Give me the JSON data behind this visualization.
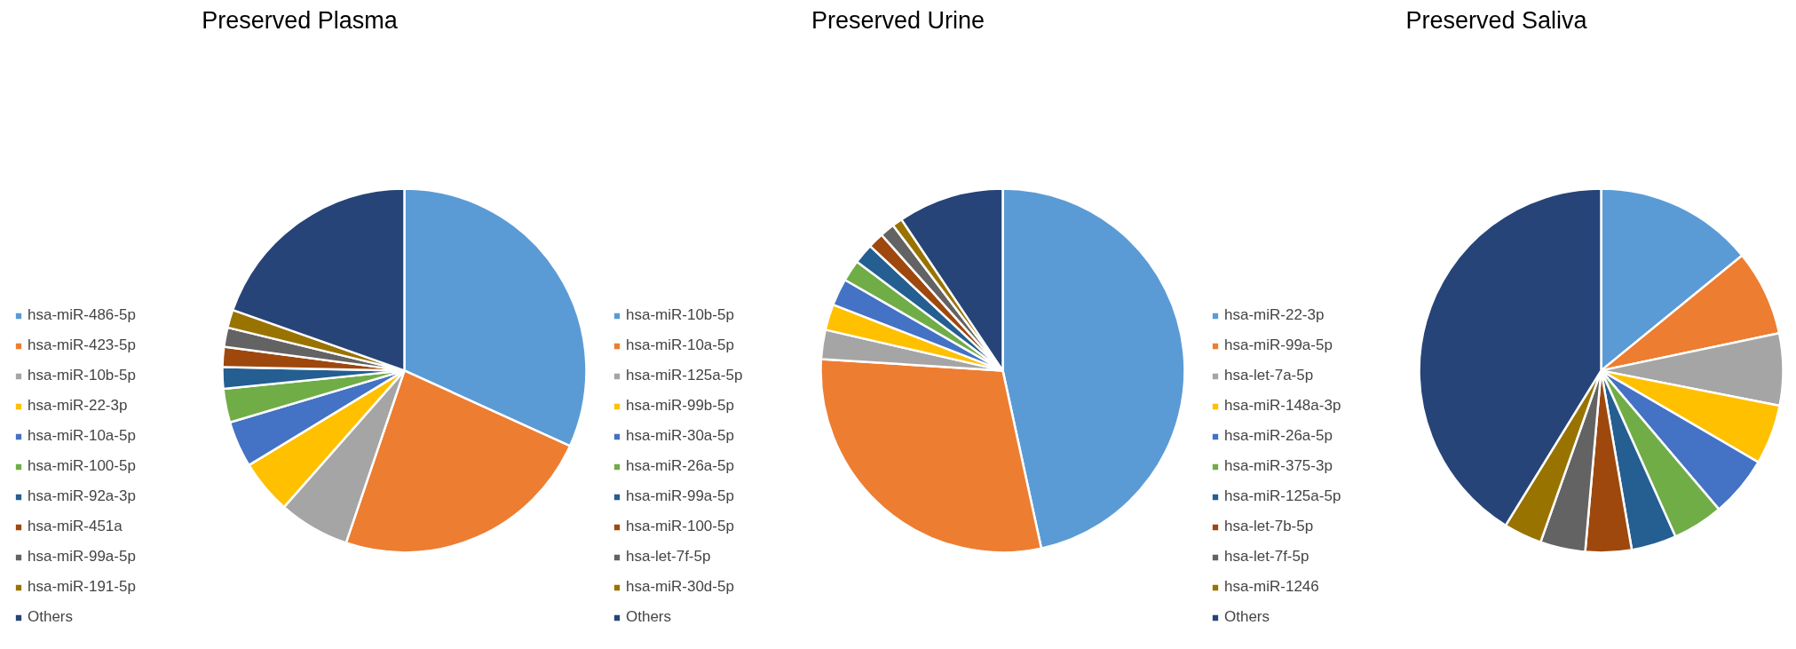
{
  "chart_data": [
    {
      "type": "pie",
      "title": "Preserved Plasma",
      "legend": "left",
      "categories": [
        "hsa-miR-486-5p",
        "hsa-miR-423-5p",
        "hsa-miR-10b-5p",
        "hsa-miR-22-3p",
        "hsa-miR-10a-5p",
        "hsa-miR-100-5p",
        "hsa-miR-92a-3p",
        "hsa-miR-451a",
        "hsa-miR-99a-5p",
        "hsa-miR-191-5p",
        "Others"
      ],
      "values": [
        31.8,
        23.4,
        6.3,
        4.8,
        4.1,
        3.0,
        1.9,
        1.8,
        1.7,
        1.6,
        19.6
      ],
      "colors": [
        "#5b9bd5",
        "#ed7d31",
        "#a5a5a5",
        "#ffc000",
        "#4472c4",
        "#70ad47",
        "#255e91",
        "#9e480e",
        "#636363",
        "#997300",
        "#264478"
      ]
    },
    {
      "type": "pie",
      "title": "Preserved Urine",
      "legend": "left",
      "categories": [
        "hsa-miR-10b-5p",
        "hsa-miR-10a-5p",
        "hsa-miR-125a-5p",
        "hsa-miR-99b-5p",
        "hsa-miR-30a-5p",
        "hsa-miR-26a-5p",
        "hsa-miR-99a-5p",
        "hsa-miR-100-5p",
        "hsa-let-7f-5p",
        "hsa-miR-30d-5p",
        "Others"
      ],
      "values": [
        46.6,
        29.4,
        2.6,
        2.3,
        2.4,
        1.9,
        1.8,
        1.4,
        1.3,
        0.9,
        9.4
      ],
      "colors": [
        "#5b9bd5",
        "#ed7d31",
        "#a5a5a5",
        "#ffc000",
        "#4472c4",
        "#70ad47",
        "#255e91",
        "#9e480e",
        "#636363",
        "#997300",
        "#264478"
      ]
    },
    {
      "type": "pie",
      "title": "Preserved Saliva",
      "legend": "left",
      "categories": [
        "hsa-miR-22-3p",
        "hsa-miR-99a-5p",
        "hsa-let-7a-5p",
        "hsa-miR-148a-3p",
        "hsa-miR-26a-5p",
        "hsa-miR-375-3p",
        "hsa-miR-125a-5p",
        "hsa-let-7b-5p",
        "hsa-let-7f-5p",
        "hsa-miR-1246",
        "Others"
      ],
      "values": [
        14.1,
        7.6,
        6.4,
        5.3,
        5.4,
        4.5,
        4.0,
        4.1,
        4.0,
        3.4,
        41.2
      ],
      "colors": [
        "#5b9bd5",
        "#ed7d31",
        "#a5a5a5",
        "#ffc000",
        "#4472c4",
        "#70ad47",
        "#255e91",
        "#9e480e",
        "#636363",
        "#997300",
        "#264478"
      ]
    }
  ]
}
